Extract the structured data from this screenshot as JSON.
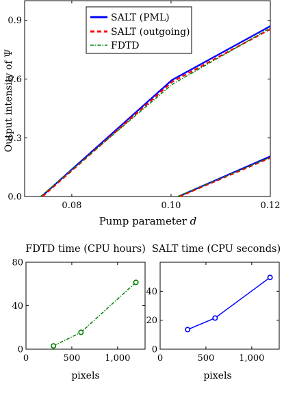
{
  "chart_data": [
    {
      "type": "line",
      "title": "",
      "xlabel": "Pump parameter d",
      "xlabel_text": "Pump parameter ",
      "xlabel_var": "d",
      "ylabel": "Output intensity of Ψ",
      "xlim": [
        0.0705,
        0.12
      ],
      "ylim": [
        0,
        1.0
      ],
      "xticks": [
        0.08,
        0.1,
        0.12
      ],
      "xtick_labels": [
        "0.08",
        "0.10",
        "0.12"
      ],
      "yticks": [
        0,
        0.3,
        0.6,
        0.9
      ],
      "ytick_labels": [
        "0.0",
        "0.3",
        "0.6",
        "0.9"
      ],
      "grid": false,
      "legend_position": "top-center",
      "series": [
        {
          "name": "SALT (PML)",
          "color": "#0000ff",
          "style": "solid",
          "segments": [
            [
              [
                0.0739,
                0.0
              ],
              [
                0.1002,
                0.595
              ],
              [
                0.12,
                0.87
              ]
            ],
            [
              [
                0.1015,
                0.0
              ],
              [
                0.12,
                0.205
              ]
            ]
          ]
        },
        {
          "name": "SALT (outgoing)",
          "color": "#ff0000",
          "style": "dashed",
          "segments": [
            [
              [
                0.0741,
                0.0
              ],
              [
                0.1002,
                0.585
              ],
              [
                0.12,
                0.855
              ]
            ],
            [
              [
                0.1017,
                0.0
              ],
              [
                0.12,
                0.198
              ]
            ]
          ]
        },
        {
          "name": "FDTD",
          "color": "#008000",
          "style": "dashdot",
          "segments": [
            [
              [
                0.0737,
                0.0
              ],
              [
                0.1002,
                0.572
              ],
              [
                0.12,
                0.86
              ]
            ],
            [
              [
                0.1013,
                0.0
              ],
              [
                0.12,
                0.2
              ]
            ]
          ]
        }
      ]
    },
    {
      "type": "line",
      "title": "FDTD time (CPU hours)",
      "xlabel": "pixels",
      "ylabel": "",
      "xlim": [
        0,
        1300
      ],
      "ylim": [
        0,
        80
      ],
      "xticks": [
        0,
        500,
        1000
      ],
      "xtick_labels": [
        "0",
        "500",
        "1,000"
      ],
      "yticks": [
        0,
        40,
        80
      ],
      "ytick_labels": [
        "0",
        "40",
        "80"
      ],
      "grid": false,
      "series": [
        {
          "color": "#008000",
          "style": "dashdot",
          "marker": "circle",
          "x": [
            300,
            600,
            1200
          ],
          "y": [
            3,
            15.5,
            61.5
          ]
        }
      ]
    },
    {
      "type": "line",
      "title": "SALT time (CPU seconds)",
      "xlabel": "pixels",
      "ylabel": "",
      "xlim": [
        0,
        1300
      ],
      "ylim": [
        0,
        60
      ],
      "xticks": [
        0,
        500,
        1000
      ],
      "xtick_labels": [
        "0",
        "500",
        "1,000"
      ],
      "yticks": [
        0,
        20,
        40
      ],
      "ytick_labels": [
        "0",
        "20",
        "40"
      ],
      "grid": false,
      "series": [
        {
          "color": "#0000ff",
          "style": "solid",
          "marker": "circle",
          "x": [
            300,
            600,
            1200
          ],
          "y": [
            13.5,
            21.5,
            49.5
          ]
        }
      ]
    }
  ]
}
